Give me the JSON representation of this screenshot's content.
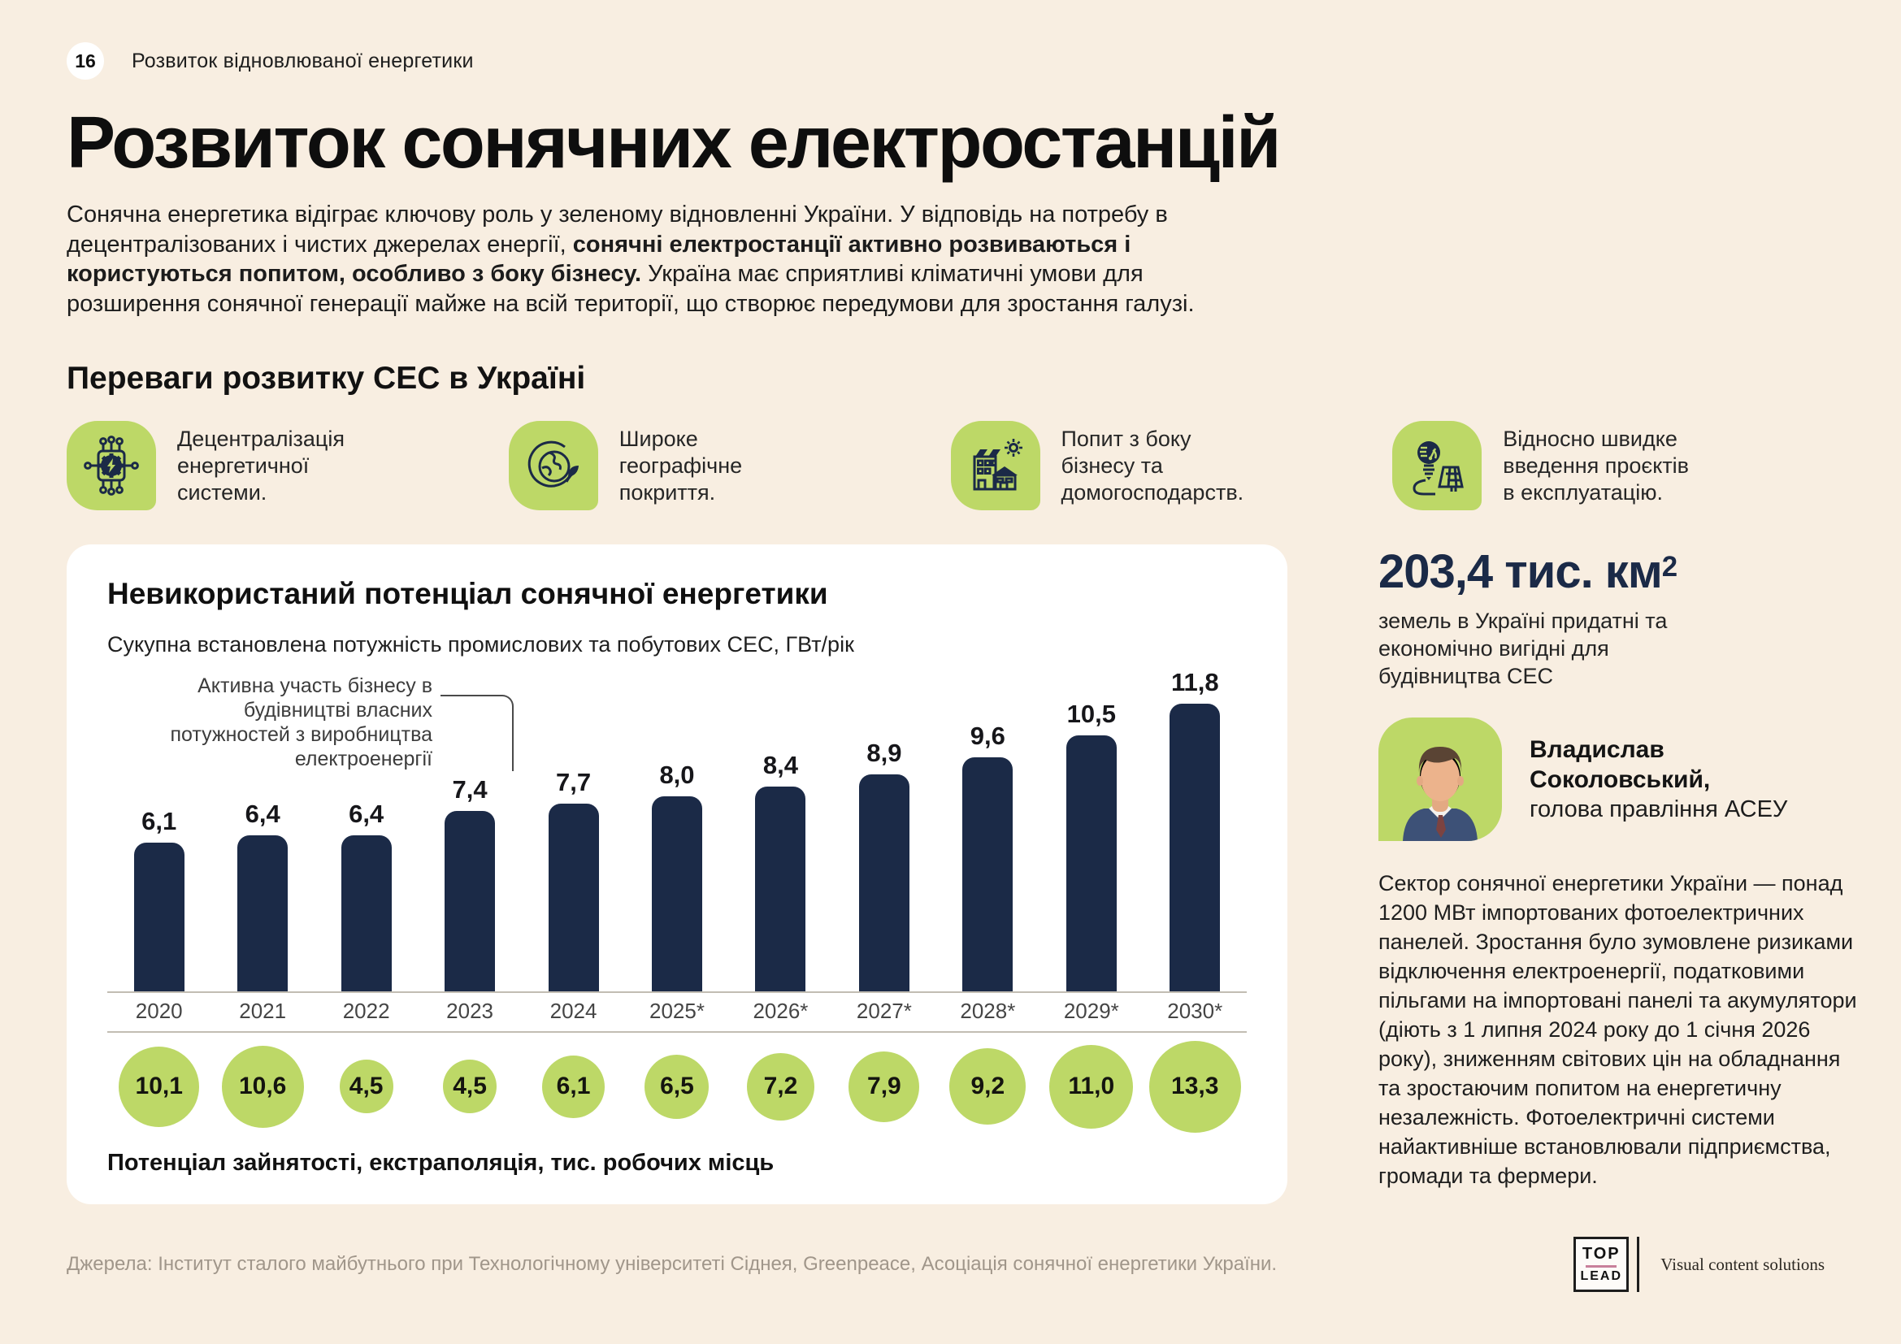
{
  "page": {
    "number": "16",
    "header": "Розвиток відновлюваної енергетики",
    "title": "Розвиток сонячних електростанцій",
    "intro": {
      "pre": "Сонячна енергетика відіграє ключову роль у зеленому відновленні України. У відповідь на потребу в децентралізованих і чистих джерелах енергії, ",
      "bold": "сонячні електростанції активно розвиваються і користуються попитом, особливо з боку бізнесу.",
      "post": " Україна має сприятливі кліматичні умови для розширення сонячної генерації майже на всій території, що створює передумови для зростання галузі."
    }
  },
  "benefits": {
    "heading": "Переваги розвитку СЕС в Україні",
    "items": [
      {
        "icon": "decentralization-icon",
        "label": "Децентралізація енергетичної системи."
      },
      {
        "icon": "globe-icon",
        "label": "Широке географічне покриття."
      },
      {
        "icon": "buildings-icon",
        "label": "Попит з боку бізнесу та домогосподарств."
      },
      {
        "icon": "fast-deployment-icon",
        "label": "Відносно швидке введення проєктів в експлуатацію."
      }
    ]
  },
  "chart_card": {
    "title": "Невикористаний потенціал сонячної енергетики",
    "subtitle": "Сукупна встановлена потужність промислових та побутових СЕС, ГВт/рік",
    "annotation": "Активна участь бізнесу в будівництві власних потужностей з виробництва електроенергії",
    "footer_label": "Потенціал зайнятості, екстраполяція, тис. робочих місць"
  },
  "chart_data": {
    "type": "bar",
    "title": "Невикористаний потенціал сонячної енергетики",
    "categories": [
      "2020",
      "2021",
      "2022",
      "2023",
      "2024",
      "2025*",
      "2026*",
      "2027*",
      "2028*",
      "2029*",
      "2030*"
    ],
    "series": [
      {
        "name": "Сукупна встановлена потужність промислових та побутових СЕС, ГВт/рік",
        "values": [
          6.1,
          6.4,
          6.4,
          7.4,
          7.7,
          8.0,
          8.4,
          8.9,
          9.6,
          10.5,
          11.8
        ],
        "labels": [
          "6,1",
          "6,4",
          "6,4",
          "7,4",
          "7,7",
          "8,0",
          "8,4",
          "8,9",
          "9,6",
          "10,5",
          "11,8"
        ]
      },
      {
        "name": "Потенціал зайнятості, екстраполяція, тис. робочих місць",
        "values": [
          10.1,
          10.6,
          4.5,
          4.5,
          6.1,
          6.5,
          7.2,
          7.9,
          9.2,
          11.0,
          13.3
        ],
        "labels": [
          "10,1",
          "10,6",
          "4,5",
          "4,5",
          "6,1",
          "6,5",
          "7,2",
          "7,9",
          "9,2",
          "11,0",
          "13,3"
        ]
      }
    ],
    "annotation": {
      "text": "Активна участь бізнесу в будівництві власних потужностей з виробництва електроенергії",
      "target_category": "2023"
    },
    "bar_color": "#1b2a47",
    "bubble_color": "#bdd867",
    "grid": false,
    "ylim": [
      0,
      12
    ]
  },
  "sidebar": {
    "stat": {
      "value": "203,4 тис. км",
      "sup": "2",
      "caption": "земель в Україні придатні та економічно вигідні для будівництва СЕС"
    },
    "person": {
      "name": "Владислав Соколовський,",
      "role": "голова правління АСЕУ"
    },
    "body": "Сектор сонячної енергетики України — понад 1200 МВт імпортованих фотоелектричних панелей. Зростання було зумовлене ризиками відключення електроенергії, податковими пільгами на імпортовані панелі та акумулятори (діють з 1 липня 2024 року до 1 січня 2026 року), зниженням світових цін на обладнання та зростаючим попитом на енергетичну незалежність. Фотоелектричні системи найактивніше встановлювали підприємства, громади та фермери."
  },
  "footer": {
    "sources": "Джерела: Інститут сталого майбутнього при Технологічному університеті Сіднея, Greenpeace, Асоціація сонячної енергетики України.",
    "logo": {
      "top": "TOP",
      "bottom": "LEAD",
      "tagline": "Visual content solutions"
    }
  }
}
